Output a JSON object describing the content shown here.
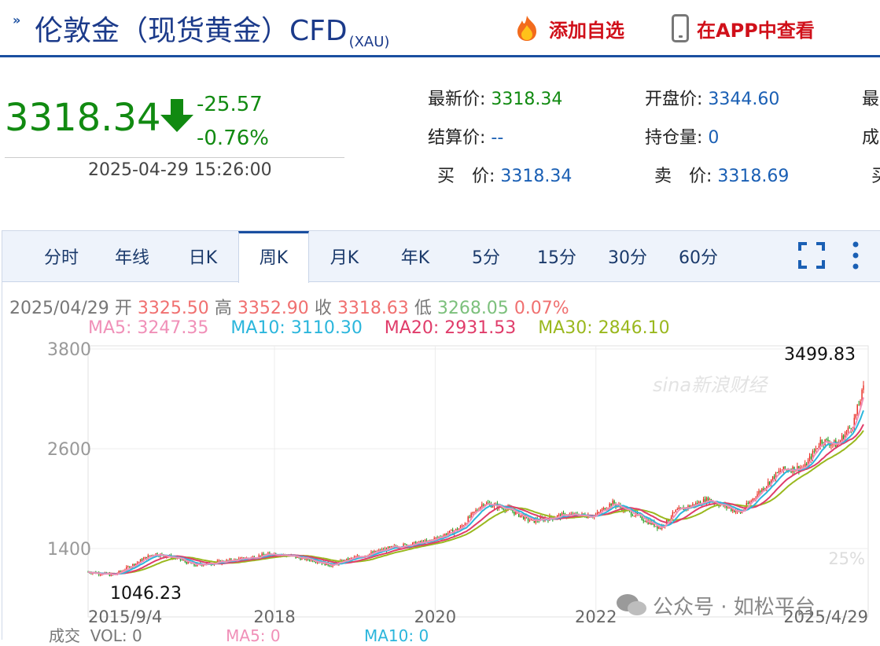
{
  "header": {
    "title": "伦敦金（现货黄金）CFD",
    "code": "(XAU)",
    "add_watchlist": "添加自选",
    "view_in_app": "在APP中查看",
    "add_icon": "fire-icon",
    "app_icon": "phone-icon"
  },
  "quote": {
    "price": "3318.34",
    "change": "-25.57",
    "change_pct": "-0.76%",
    "direction_icon": "down-arrow-icon",
    "time": "2025-04-29 15:26:00"
  },
  "info": {
    "latest_label": "最新价:",
    "latest": "3318.34",
    "open_label": "开盘价:",
    "open": "3344.60",
    "settle_label": "结算价:",
    "settle": "--",
    "oi_label": "持仓量:",
    "oi": "0",
    "bid_label": "买　价:",
    "bid": "3318.34",
    "ask_label": "卖　价:",
    "ask": "3318.69",
    "col3_r1": "最",
    "col3_r2": "成",
    "col3_r3": "买"
  },
  "tabs": [
    "分时",
    "年线",
    "日K",
    "周K",
    "月K",
    "年K",
    "5分",
    "15分",
    "30分",
    "60分"
  ],
  "active_tab": "周K",
  "ohlc": {
    "date": "2025/04/29",
    "open_label": "开",
    "open": "3325.50",
    "high_label": "高",
    "high": "3352.90",
    "close_label": "收",
    "close": "3318.63",
    "low_label": "低",
    "low": "3268.05",
    "pct": "0.07%"
  },
  "ma": {
    "ma5": "MA5: 3247.35",
    "ma10": "MA10: 3110.30",
    "ma20": "MA20: 2931.53",
    "ma30": "MA30: 2846.10"
  },
  "colors": {
    "up": "#e8251b",
    "down": "#1a9a1a",
    "ma5": "#f090b8",
    "ma10": "#2bb6dc",
    "ma20": "#e03c6a",
    "ma30": "#9ab81e",
    "brand": "#1a4fa0"
  },
  "chart_data": {
    "type": "candlestick",
    "x_ticks": [
      "2015/9/4",
      "2018",
      "2020",
      "2022",
      "2025/4/29"
    ],
    "y_ticks": [
      3800,
      2600,
      1400
    ],
    "ylim": [
      1000,
      3800
    ],
    "right_pct_ticks": [
      "25%"
    ],
    "max_label": "3499.83",
    "min_label": "1046.23",
    "series": [
      {
        "name": "close_path",
        "x": [
          2015.68,
          2016.0,
          2016.5,
          2016.8,
          2017.0,
          2017.5,
          2018.0,
          2018.5,
          2018.7,
          2019.0,
          2019.5,
          2019.9,
          2020.3,
          2020.6,
          2020.9,
          2021.2,
          2021.6,
          2022.0,
          2022.2,
          2022.8,
          2023.0,
          2023.4,
          2023.8,
          2024.0,
          2024.3,
          2024.6,
          2024.8,
          2025.0,
          2025.2,
          2025.33
        ],
        "y": [
          1120,
          1080,
          1340,
          1280,
          1200,
          1260,
          1340,
          1260,
          1200,
          1290,
          1420,
          1480,
          1640,
          1950,
          1880,
          1730,
          1800,
          1800,
          1950,
          1650,
          1850,
          1990,
          1830,
          2050,
          2340,
          2380,
          2700,
          2650,
          2900,
          3318
        ]
      }
    ]
  },
  "volume": {
    "label": "成交",
    "vol": "VOL: 0",
    "ma5": "MA5: 0",
    "ma10": "MA10: 0"
  },
  "watermark": {
    "sina": "sina新浪财经",
    "wechat": "公众号 · 如松平台"
  }
}
